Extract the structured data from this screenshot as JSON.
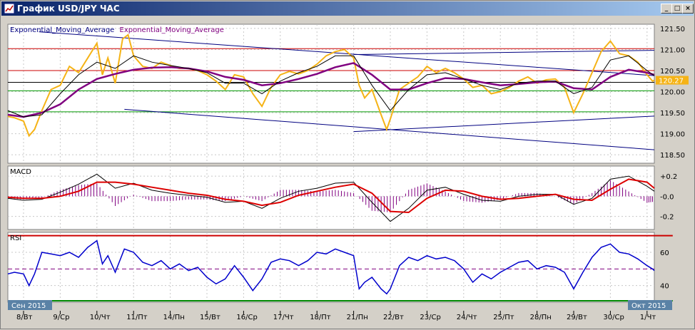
{
  "window": {
    "title": "График USD/JPY  ЧАС",
    "buttons": [
      "_",
      "□",
      "×"
    ]
  },
  "chart_data": [
    {
      "type": "line",
      "pane": "price",
      "title": "",
      "series": [
        {
          "name": "Exponential_Moving_Average",
          "color": "#000080"
        },
        {
          "name": "Exponential_Moving_Average",
          "color": "#800080"
        }
      ],
      "price_color": "#f5b316",
      "ylim": [
        118.3,
        121.6
      ],
      "yticks": [
        "121.50",
        "121.00",
        "120.50",
        "120.00",
        "119.50",
        "119.00",
        "118.50"
      ],
      "current_price": "120.27",
      "horizontal_levels": [
        {
          "value": 121.02,
          "color": "#cc0000"
        },
        {
          "value": 120.5,
          "color": "#cc0000"
        },
        {
          "value": 120.22,
          "color": "#000000"
        },
        {
          "value": 120.02,
          "color": "#009900"
        },
        {
          "value": 119.52,
          "color": "#009900"
        }
      ],
      "trendlines": [
        {
          "from": [
            0.42,
            121.42
          ],
          "to": [
            30.0,
            120.38
          ]
        },
        {
          "from": [
            9.0,
            120.88
          ],
          "to": [
            30.0,
            120.98
          ]
        },
        {
          "from": [
            2.75,
            119.58
          ],
          "to": [
            30.0,
            118.62
          ]
        },
        {
          "from": [
            9.0,
            119.05
          ],
          "to": [
            30.0,
            119.42
          ]
        }
      ],
      "price_points": [
        [
          -0.5,
          119.41
        ],
        [
          -0.25,
          119.38
        ],
        [
          0.0,
          119.3
        ],
        [
          0.15,
          118.95
        ],
        [
          0.3,
          119.1
        ],
        [
          0.5,
          119.55
        ],
        [
          0.75,
          120.05
        ],
        [
          1.0,
          120.15
        ],
        [
          1.25,
          120.6
        ],
        [
          1.5,
          120.45
        ],
        [
          1.75,
          120.8
        ],
        [
          2.0,
          121.15
        ],
        [
          2.15,
          120.4
        ],
        [
          2.3,
          120.8
        ],
        [
          2.5,
          120.2
        ],
        [
          2.7,
          121.25
        ],
        [
          2.85,
          121.35
        ],
        [
          3.0,
          120.85
        ],
        [
          3.25,
          120.6
        ],
        [
          3.5,
          120.55
        ],
        [
          3.75,
          120.7
        ],
        [
          4.0,
          120.62
        ],
        [
          4.25,
          120.55
        ],
        [
          4.5,
          120.55
        ],
        [
          4.75,
          120.5
        ],
        [
          5.0,
          120.4
        ],
        [
          5.25,
          120.25
        ],
        [
          5.5,
          120.05
        ],
        [
          5.75,
          120.4
        ],
        [
          6.0,
          120.35
        ],
        [
          6.25,
          119.95
        ],
        [
          6.5,
          119.65
        ],
        [
          6.75,
          120.1
        ],
        [
          7.0,
          120.4
        ],
        [
          7.25,
          120.48
        ],
        [
          7.5,
          120.42
        ],
        [
          7.75,
          120.5
        ],
        [
          8.0,
          120.65
        ],
        [
          8.25,
          120.85
        ],
        [
          8.5,
          120.95
        ],
        [
          8.75,
          121.0
        ],
        [
          9.0,
          120.8
        ],
        [
          9.15,
          120.15
        ],
        [
          9.3,
          119.85
        ],
        [
          9.5,
          120.05
        ],
        [
          9.75,
          119.45
        ],
        [
          9.9,
          119.1
        ],
        [
          10.0,
          119.35
        ],
        [
          10.25,
          120.05
        ],
        [
          10.5,
          120.2
        ],
        [
          10.75,
          120.35
        ],
        [
          11.0,
          120.6
        ],
        [
          11.25,
          120.45
        ],
        [
          11.5,
          120.55
        ],
        [
          11.75,
          120.45
        ],
        [
          12.0,
          120.3
        ],
        [
          12.25,
          120.1
        ],
        [
          12.5,
          120.15
        ],
        [
          12.75,
          119.95
        ],
        [
          13.0,
          120.0
        ],
        [
          13.25,
          120.1
        ],
        [
          13.5,
          120.25
        ],
        [
          13.75,
          120.35
        ],
        [
          14.0,
          120.2
        ],
        [
          14.25,
          120.28
        ],
        [
          14.5,
          120.3
        ],
        [
          14.75,
          120.1
        ],
        [
          15.0,
          119.5
        ],
        [
          15.25,
          119.95
        ],
        [
          15.5,
          120.45
        ],
        [
          15.75,
          120.95
        ],
        [
          16.0,
          121.2
        ],
        [
          16.25,
          120.9
        ],
        [
          16.5,
          120.85
        ],
        [
          16.75,
          120.7
        ],
        [
          17.0,
          120.4
        ],
        [
          17.15,
          120.25
        ],
        [
          17.3,
          120.27
        ]
      ],
      "ema_fast": [
        [
          -0.5,
          119.55
        ],
        [
          0.0,
          119.4
        ],
        [
          0.5,
          119.45
        ],
        [
          1.0,
          119.95
        ],
        [
          1.5,
          120.4
        ],
        [
          2.0,
          120.7
        ],
        [
          2.5,
          120.55
        ],
        [
          3.0,
          120.85
        ],
        [
          3.5,
          120.7
        ],
        [
          4.0,
          120.62
        ],
        [
          4.5,
          120.55
        ],
        [
          5.0,
          120.45
        ],
        [
          5.5,
          120.2
        ],
        [
          6.0,
          120.2
        ],
        [
          6.5,
          119.95
        ],
        [
          7.0,
          120.25
        ],
        [
          7.5,
          120.45
        ],
        [
          8.0,
          120.6
        ],
        [
          8.5,
          120.85
        ],
        [
          9.0,
          120.85
        ],
        [
          9.5,
          120.15
        ],
        [
          10.0,
          119.55
        ],
        [
          10.5,
          120.05
        ],
        [
          11.0,
          120.4
        ],
        [
          11.5,
          120.45
        ],
        [
          12.0,
          120.3
        ],
        [
          12.5,
          120.15
        ],
        [
          13.0,
          120.05
        ],
        [
          13.5,
          120.2
        ],
        [
          14.0,
          120.25
        ],
        [
          14.5,
          120.25
        ],
        [
          15.0,
          119.95
        ],
        [
          15.5,
          120.1
        ],
        [
          16.0,
          120.75
        ],
        [
          16.5,
          120.85
        ],
        [
          17.0,
          120.5
        ],
        [
          17.3,
          120.38
        ]
      ],
      "ema_slow": [
        [
          -0.5,
          119.45
        ],
        [
          0.0,
          119.4
        ],
        [
          0.5,
          119.5
        ],
        [
          1.0,
          119.7
        ],
        [
          1.5,
          120.05
        ],
        [
          2.0,
          120.3
        ],
        [
          2.5,
          120.42
        ],
        [
          3.0,
          120.52
        ],
        [
          3.5,
          120.57
        ],
        [
          4.0,
          120.58
        ],
        [
          4.5,
          120.55
        ],
        [
          5.0,
          120.48
        ],
        [
          5.5,
          120.35
        ],
        [
          6.0,
          120.28
        ],
        [
          6.5,
          120.15
        ],
        [
          7.0,
          120.2
        ],
        [
          7.5,
          120.3
        ],
        [
          8.0,
          120.42
        ],
        [
          8.5,
          120.58
        ],
        [
          9.0,
          120.68
        ],
        [
          9.5,
          120.4
        ],
        [
          10.0,
          120.05
        ],
        [
          10.5,
          120.05
        ],
        [
          11.0,
          120.2
        ],
        [
          11.5,
          120.32
        ],
        [
          12.0,
          120.3
        ],
        [
          12.5,
          120.22
        ],
        [
          13.0,
          120.15
        ],
        [
          13.5,
          120.18
        ],
        [
          14.0,
          120.22
        ],
        [
          14.5,
          120.24
        ],
        [
          15.0,
          120.08
        ],
        [
          15.5,
          120.05
        ],
        [
          16.0,
          120.35
        ],
        [
          16.5,
          120.52
        ],
        [
          17.0,
          120.45
        ],
        [
          17.3,
          120.4
        ]
      ]
    },
    {
      "type": "line",
      "pane": "macd",
      "title": "MACD",
      "ylim": [
        -0.33,
        0.3
      ],
      "yticks": [
        "+0.2",
        "-0.0",
        "-0.2"
      ],
      "histogram_color": "#800080",
      "macd": [
        [
          -0.5,
          -0.02
        ],
        [
          0.0,
          -0.04
        ],
        [
          0.5,
          -0.03
        ],
        [
          1.0,
          0.04
        ],
        [
          1.5,
          0.12
        ],
        [
          2.0,
          0.22
        ],
        [
          2.5,
          0.08
        ],
        [
          3.0,
          0.13
        ],
        [
          3.5,
          0.06
        ],
        [
          4.0,
          0.03
        ],
        [
          4.5,
          0.01
        ],
        [
          5.0,
          -0.01
        ],
        [
          5.5,
          -0.06
        ],
        [
          6.0,
          -0.05
        ],
        [
          6.5,
          -0.12
        ],
        [
          7.0,
          -0.02
        ],
        [
          7.5,
          0.05
        ],
        [
          8.0,
          0.08
        ],
        [
          8.5,
          0.13
        ],
        [
          9.0,
          0.14
        ],
        [
          9.5,
          -0.06
        ],
        [
          10.0,
          -0.25
        ],
        [
          10.5,
          -0.12
        ],
        [
          11.0,
          0.06
        ],
        [
          11.5,
          0.09
        ],
        [
          12.0,
          0.02
        ],
        [
          12.5,
          -0.04
        ],
        [
          13.0,
          -0.05
        ],
        [
          13.5,
          0.0
        ],
        [
          14.0,
          0.02
        ],
        [
          14.5,
          0.02
        ],
        [
          15.0,
          -0.08
        ],
        [
          15.5,
          -0.02
        ],
        [
          16.0,
          0.17
        ],
        [
          16.5,
          0.2
        ],
        [
          17.0,
          0.1
        ],
        [
          17.3,
          0.05
        ]
      ],
      "signal": [
        [
          -0.5,
          -0.01
        ],
        [
          0.0,
          -0.02
        ],
        [
          0.5,
          -0.02
        ],
        [
          1.0,
          0.0
        ],
        [
          1.5,
          0.05
        ],
        [
          2.0,
          0.14
        ],
        [
          2.5,
          0.14
        ],
        [
          3.0,
          0.12
        ],
        [
          3.5,
          0.09
        ],
        [
          4.0,
          0.06
        ],
        [
          4.5,
          0.03
        ],
        [
          5.0,
          0.01
        ],
        [
          5.5,
          -0.03
        ],
        [
          6.0,
          -0.05
        ],
        [
          6.5,
          -0.09
        ],
        [
          7.0,
          -0.06
        ],
        [
          7.5,
          0.01
        ],
        [
          8.0,
          0.05
        ],
        [
          8.5,
          0.09
        ],
        [
          9.0,
          0.12
        ],
        [
          9.5,
          0.03
        ],
        [
          10.0,
          -0.15
        ],
        [
          10.5,
          -0.16
        ],
        [
          11.0,
          -0.02
        ],
        [
          11.5,
          0.06
        ],
        [
          12.0,
          0.05
        ],
        [
          12.5,
          0.0
        ],
        [
          13.0,
          -0.03
        ],
        [
          13.5,
          -0.02
        ],
        [
          14.0,
          0.0
        ],
        [
          14.5,
          0.02
        ],
        [
          15.0,
          -0.03
        ],
        [
          15.5,
          -0.04
        ],
        [
          16.0,
          0.07
        ],
        [
          16.5,
          0.17
        ],
        [
          17.0,
          0.14
        ],
        [
          17.3,
          0.08
        ]
      ]
    },
    {
      "type": "line",
      "pane": "rsi",
      "title": "RSI",
      "ylim": [
        30,
        72
      ],
      "yticks": [
        "60",
        "40"
      ],
      "upper_level": 70,
      "mid_level": 50,
      "lower_level": 30,
      "rsi": [
        [
          -0.5,
          47
        ],
        [
          -0.25,
          48
        ],
        [
          0.0,
          47
        ],
        [
          0.15,
          40
        ],
        [
          0.3,
          47
        ],
        [
          0.5,
          60
        ],
        [
          0.75,
          59
        ],
        [
          1.0,
          58
        ],
        [
          1.25,
          60
        ],
        [
          1.5,
          57
        ],
        [
          1.75,
          63
        ],
        [
          2.0,
          67
        ],
        [
          2.15,
          53
        ],
        [
          2.3,
          58
        ],
        [
          2.5,
          48
        ],
        [
          2.75,
          62
        ],
        [
          3.0,
          60
        ],
        [
          3.25,
          54
        ],
        [
          3.5,
          52
        ],
        [
          3.75,
          55
        ],
        [
          4.0,
          50
        ],
        [
          4.25,
          53
        ],
        [
          4.5,
          49
        ],
        [
          4.75,
          51
        ],
        [
          5.0,
          45
        ],
        [
          5.25,
          41
        ],
        [
          5.5,
          44
        ],
        [
          5.75,
          52
        ],
        [
          6.0,
          45
        ],
        [
          6.25,
          37
        ],
        [
          6.5,
          44
        ],
        [
          6.75,
          54
        ],
        [
          7.0,
          56
        ],
        [
          7.25,
          55
        ],
        [
          7.5,
          52
        ],
        [
          7.75,
          55
        ],
        [
          8.0,
          60
        ],
        [
          8.25,
          59
        ],
        [
          8.5,
          62
        ],
        [
          8.75,
          60
        ],
        [
          9.0,
          58
        ],
        [
          9.15,
          38
        ],
        [
          9.3,
          42
        ],
        [
          9.5,
          45
        ],
        [
          9.75,
          38
        ],
        [
          9.9,
          35
        ],
        [
          10.0,
          38
        ],
        [
          10.25,
          52
        ],
        [
          10.5,
          57
        ],
        [
          10.75,
          55
        ],
        [
          11.0,
          58
        ],
        [
          11.25,
          56
        ],
        [
          11.5,
          57
        ],
        [
          11.75,
          55
        ],
        [
          12.0,
          50
        ],
        [
          12.25,
          42
        ],
        [
          12.5,
          47
        ],
        [
          12.75,
          44
        ],
        [
          13.0,
          48
        ],
        [
          13.25,
          51
        ],
        [
          13.5,
          54
        ],
        [
          13.75,
          55
        ],
        [
          14.0,
          50
        ],
        [
          14.25,
          52
        ],
        [
          14.5,
          51
        ],
        [
          14.75,
          48
        ],
        [
          15.0,
          38
        ],
        [
          15.25,
          48
        ],
        [
          15.5,
          57
        ],
        [
          15.75,
          63
        ],
        [
          16.0,
          65
        ],
        [
          16.25,
          60
        ],
        [
          16.5,
          59
        ],
        [
          16.75,
          56
        ],
        [
          17.0,
          52
        ],
        [
          17.15,
          50
        ],
        [
          17.3,
          49
        ]
      ]
    }
  ],
  "x_axis": {
    "labels": [
      "8/Вт",
      "9/Ср",
      "10/Чт",
      "11/Пт",
      "14/Пн",
      "15/Вт",
      "16/Ср",
      "17/Чт",
      "18/Пт",
      "21/Пн",
      "22/Вт",
      "23/Ср",
      "24/Чт",
      "25/Пт",
      "28/Пн",
      "29/Вт",
      "30/Ср",
      "1/Чт"
    ],
    "month_start": "Сен 2015",
    "month_end": "Окт 2015"
  }
}
